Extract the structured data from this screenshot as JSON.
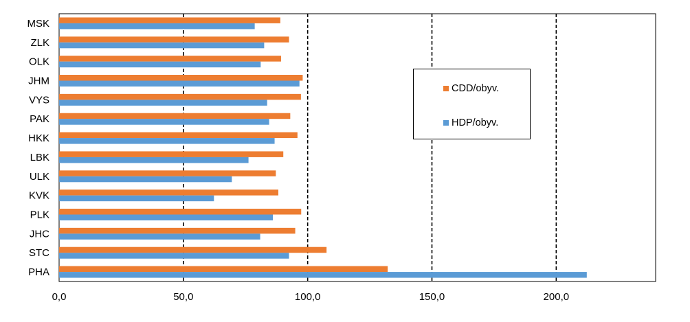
{
  "chart_data": {
    "type": "bar",
    "orientation": "horizontal",
    "categories": [
      "MSK",
      "ZLK",
      "OLK",
      "JHM",
      "VYS",
      "PAK",
      "HKK",
      "LBK",
      "ULK",
      "KVK",
      "PLK",
      "JHC",
      "STC",
      "PHA"
    ],
    "series": [
      {
        "name": "CDD/obyv.",
        "color": "#ED7D31",
        "values": [
          89.0,
          92.5,
          89.3,
          98.0,
          97.3,
          93.0,
          95.9,
          90.2,
          87.2,
          88.2,
          97.4,
          95.0,
          107.6,
          132.2
        ]
      },
      {
        "name": "HDP/obyv.",
        "color": "#5B9BD5",
        "values": [
          78.7,
          82.5,
          81.1,
          96.7,
          83.7,
          84.5,
          86.7,
          76.2,
          69.5,
          62.3,
          86.0,
          80.9,
          92.5,
          212.3
        ]
      }
    ],
    "xlim": [
      0,
      240
    ],
    "xticks": [
      0,
      50,
      100,
      150,
      200
    ],
    "xtick_labels": [
      "0,0",
      "50,0",
      "100,0",
      "150,0",
      "200,0"
    ],
    "gridlines": [
      50,
      100,
      150,
      200
    ],
    "gridline_style": "dashed",
    "legend_position": "right"
  }
}
